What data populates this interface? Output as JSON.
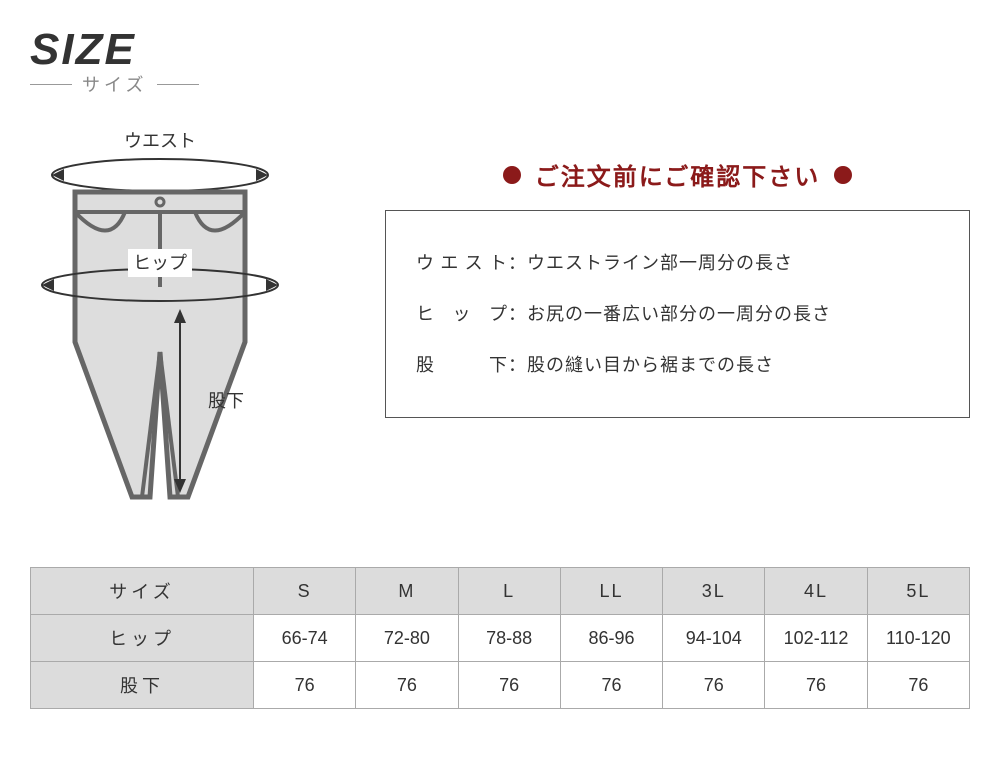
{
  "header": {
    "title": "SIZE",
    "subtitle": "サイズ"
  },
  "diagram": {
    "waist_label": "ウエスト",
    "hip_label": "ヒップ",
    "inseam_label": "股下",
    "stroke_color": "#666666",
    "fill_color": "#dddddd",
    "arrow_color": "#333333"
  },
  "notice": {
    "title": "ご注文前にご確認下さい",
    "title_color": "#8b1a1a",
    "dot_color": "#8b1a1a",
    "border_color": "#555555",
    "lines": [
      {
        "term": "ウエスト",
        "desc": "ウエストライン部一周分の長さ"
      },
      {
        "term": "ヒップ",
        "desc": "お尻の一番広い部分の一周分の長さ"
      },
      {
        "term": "股　下",
        "desc": "股の縫い目から裾までの長さ"
      }
    ]
  },
  "table": {
    "header_bg": "#dcdcdc",
    "border_color": "#aaaaaa",
    "columns": [
      "サイズ",
      "S",
      "M",
      "L",
      "LL",
      "3L",
      "4L",
      "5L"
    ],
    "rows": [
      {
        "label": "ヒップ",
        "values": [
          "66-74",
          "72-80",
          "78-88",
          "86-96",
          "94-104",
          "102-112",
          "110-120"
        ]
      },
      {
        "label": "股下",
        "values": [
          "76",
          "76",
          "76",
          "76",
          "76",
          "76",
          "76"
        ]
      }
    ]
  }
}
